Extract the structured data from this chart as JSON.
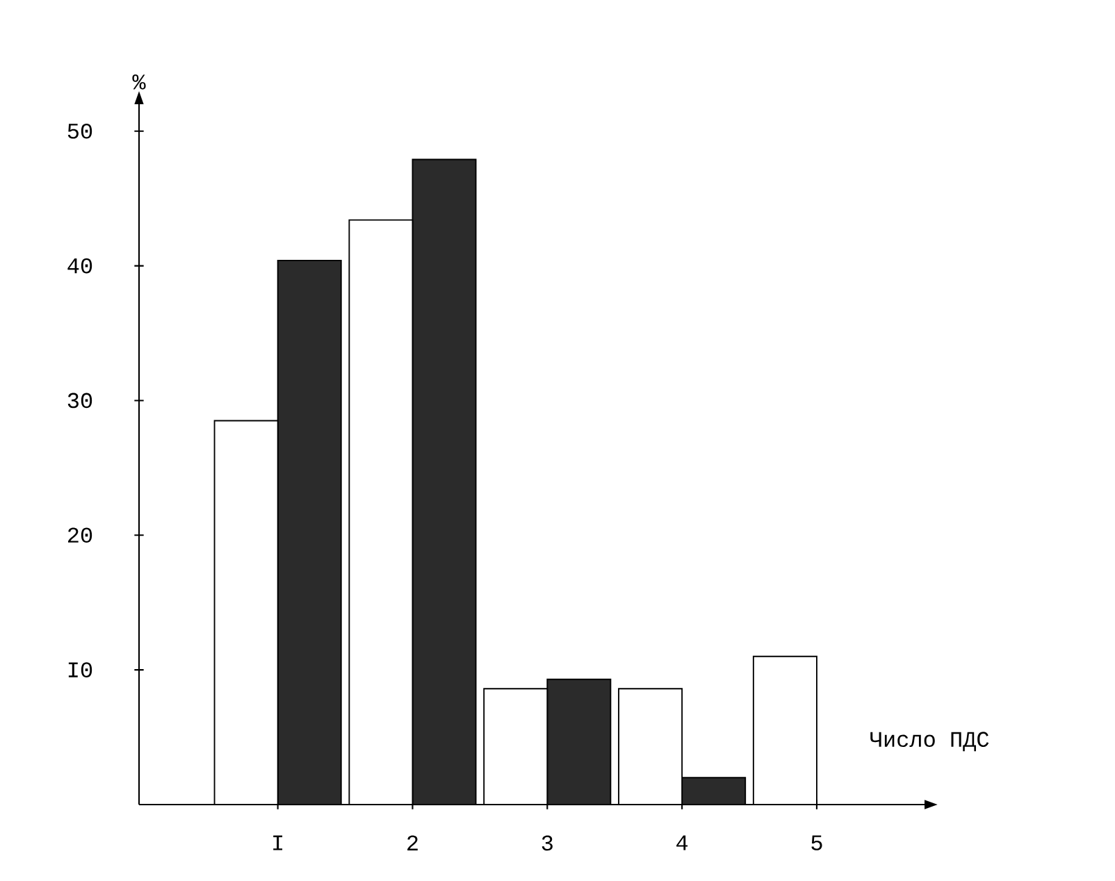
{
  "chart_data": {
    "type": "bar",
    "xlabel": "Число ПДС",
    "ylabel": "%",
    "categories": [
      "I",
      "2",
      "3",
      "4",
      "5"
    ],
    "series": [
      {
        "color": "#ffffff",
        "values": [
          28.5,
          43.4,
          8.6,
          8.6,
          11.0
        ]
      },
      {
        "color": "#2b2b2b",
        "values": [
          40.4,
          47.9,
          9.3,
          2.0,
          null
        ]
      }
    ],
    "ylim": [
      0,
      52
    ],
    "yticks": [
      {
        "value": 10,
        "label": "I0"
      },
      20,
      30,
      40,
      50
    ]
  }
}
